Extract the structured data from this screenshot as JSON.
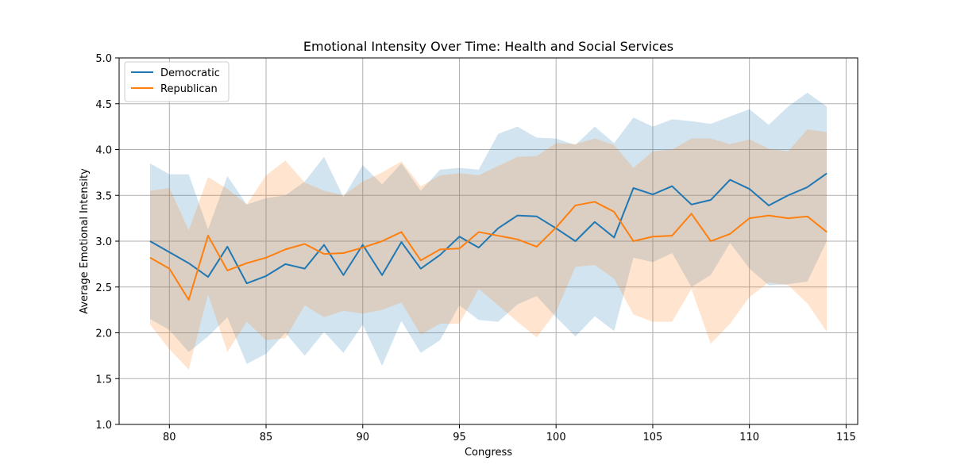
{
  "chart_data": {
    "type": "line",
    "title": "Emotional Intensity Over Time: Health and Social Services",
    "xlabel": "Congress",
    "ylabel": "Average Emotional Intensity",
    "xlim": [
      77.4,
      115.6
    ],
    "ylim": [
      1.0,
      5.0
    ],
    "xticks": [
      80,
      85,
      90,
      95,
      100,
      105,
      110,
      115
    ],
    "yticks": [
      1.0,
      1.5,
      2.0,
      2.5,
      3.0,
      3.5,
      4.0,
      4.5,
      5.0
    ],
    "xtick_labels": [
      "80",
      "85",
      "90",
      "95",
      "100",
      "105",
      "110",
      "115"
    ],
    "ytick_labels": [
      "1.0",
      "1.5",
      "2.0",
      "2.5",
      "3.0",
      "3.5",
      "4.0",
      "4.5",
      "5.0"
    ],
    "grid": true,
    "legend": "upper-left",
    "x": [
      79,
      80,
      81,
      82,
      83,
      84,
      85,
      86,
      87,
      88,
      89,
      90,
      91,
      92,
      93,
      94,
      95,
      96,
      97,
      98,
      99,
      100,
      101,
      102,
      103,
      104,
      105,
      106,
      107,
      108,
      109,
      110,
      111,
      112,
      113,
      114
    ],
    "series": [
      {
        "name": "Democratic",
        "color": "#1f77b4",
        "band_color": "#1f77b4",
        "band_opacity": 0.2,
        "values": [
          3.0,
          2.88,
          2.76,
          2.61,
          2.94,
          2.54,
          2.62,
          2.75,
          2.7,
          2.96,
          2.63,
          2.96,
          2.63,
          2.99,
          2.7,
          2.85,
          3.05,
          2.93,
          3.14,
          3.28,
          3.27,
          3.14,
          3.0,
          3.21,
          3.04,
          3.58,
          3.51,
          3.6,
          3.4,
          3.45,
          3.67,
          3.57,
          3.39,
          3.5,
          3.59,
          3.74
        ],
        "upper": [
          3.85,
          3.73,
          3.73,
          3.13,
          3.71,
          3.4,
          3.47,
          3.5,
          3.65,
          3.92,
          3.48,
          3.83,
          3.62,
          3.85,
          3.55,
          3.78,
          3.8,
          3.78,
          4.17,
          4.25,
          4.13,
          4.12,
          4.05,
          4.25,
          4.07,
          4.35,
          4.25,
          4.33,
          4.31,
          4.28,
          4.36,
          4.44,
          4.27,
          4.47,
          4.62,
          4.47
        ],
        "lower": [
          2.15,
          2.03,
          1.79,
          1.96,
          2.17,
          1.66,
          1.77,
          2.0,
          1.75,
          2.01,
          1.78,
          2.09,
          1.64,
          2.13,
          1.78,
          1.92,
          2.3,
          2.14,
          2.12,
          2.31,
          2.4,
          2.17,
          1.96,
          2.18,
          2.02,
          2.82,
          2.77,
          2.87,
          2.5,
          2.63,
          2.98,
          2.7,
          2.52,
          2.53,
          2.56,
          3.0
        ]
      },
      {
        "name": "Republican",
        "color": "#ff7f0e",
        "band_color": "#ff7f0e",
        "band_opacity": 0.2,
        "values": [
          2.82,
          2.7,
          2.36,
          3.06,
          2.68,
          2.76,
          2.82,
          2.91,
          2.97,
          2.86,
          2.87,
          2.93,
          3.0,
          3.1,
          2.79,
          2.91,
          2.92,
          3.1,
          3.06,
          3.02,
          2.94,
          3.15,
          3.39,
          3.43,
          3.32,
          3.0,
          3.05,
          3.06,
          3.3,
          3.0,
          3.08,
          3.25,
          3.28,
          3.25,
          3.27,
          3.1
        ],
        "upper": [
          3.55,
          3.58,
          3.12,
          3.7,
          3.57,
          3.4,
          3.72,
          3.88,
          3.64,
          3.55,
          3.5,
          3.65,
          3.75,
          3.87,
          3.6,
          3.72,
          3.74,
          3.72,
          3.82,
          3.92,
          3.93,
          4.07,
          4.06,
          4.12,
          4.05,
          3.8,
          3.98,
          4.0,
          4.12,
          4.12,
          4.06,
          4.11,
          4.01,
          3.98,
          4.22,
          4.19
        ],
        "lower": [
          2.09,
          1.82,
          1.6,
          2.42,
          1.79,
          2.12,
          1.92,
          1.94,
          2.3,
          2.17,
          2.24,
          2.21,
          2.25,
          2.33,
          1.98,
          2.1,
          2.1,
          2.48,
          2.3,
          2.12,
          1.95,
          2.23,
          2.72,
          2.74,
          2.59,
          2.2,
          2.12,
          2.12,
          2.48,
          1.88,
          2.1,
          2.39,
          2.55,
          2.52,
          2.32,
          2.01
        ]
      }
    ]
  }
}
